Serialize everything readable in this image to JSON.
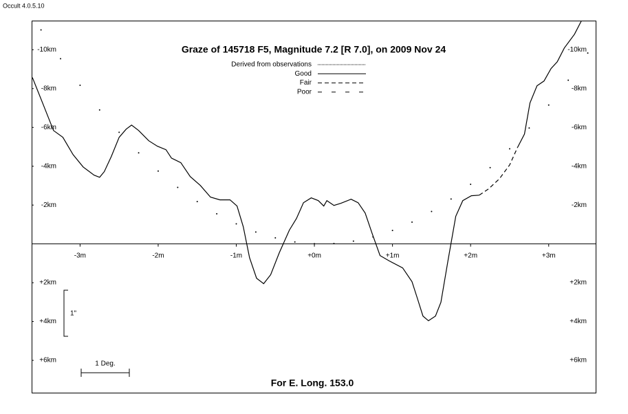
{
  "app_label": "Occult 4.0.5.10",
  "chart_data": {
    "type": "line",
    "title": "Graze of  145718 F5,  Magnitude 7.2 [R 7.0],  on 2009 Nov 24",
    "footer": "For E. Long. 153.0",
    "scale_vertical": "1\"",
    "scale_horizontal": "1 Deg.",
    "legend": [
      {
        "label": "Derived from observations",
        "dash": "1 1"
      },
      {
        "label": "Good",
        "dash": "none"
      },
      {
        "label": "Fair",
        "dash": "6 4"
      },
      {
        "label": "Poor",
        "dash": "6 14"
      }
    ],
    "xlim": [
      -3.62,
      3.61
    ],
    "ylim": [
      7.7,
      -11.5
    ],
    "xticks": [
      {
        "value": -3,
        "label": "-3m"
      },
      {
        "value": -2,
        "label": "-2m"
      },
      {
        "value": -1,
        "label": "-1m"
      },
      {
        "value": 0,
        "label": "+0m"
      },
      {
        "value": 1,
        "label": "+1m"
      },
      {
        "value": 2,
        "label": "+2m"
      },
      {
        "value": 3,
        "label": "+3m"
      }
    ],
    "yticks": [
      {
        "value": -10,
        "label": "-10km"
      },
      {
        "value": -8,
        "label": "-8km"
      },
      {
        "value": -6,
        "label": "-6km"
      },
      {
        "value": -4,
        "label": "-4km"
      },
      {
        "value": -2,
        "label": "-2km"
      },
      {
        "value": 2,
        "label": "+2km"
      },
      {
        "value": 4,
        "label": "+4km"
      },
      {
        "value": 6,
        "label": "+6km"
      }
    ],
    "series": [
      {
        "style": "solid",
        "color": "#000000",
        "x": [
          -3.61,
          -3.48,
          -3.34,
          -3.22,
          -3.09,
          -2.96,
          -2.82,
          -2.75,
          -2.69,
          -2.6,
          -2.5,
          -2.41,
          -2.34,
          -2.25,
          -2.12,
          -2.01,
          -1.9,
          -1.83,
          -1.71,
          -1.59,
          -1.46,
          -1.33,
          -1.21,
          -1.08,
          -0.99,
          -0.91,
          -0.83,
          -0.74,
          -0.65,
          -0.56,
          -0.45,
          -0.32,
          -0.23,
          -0.14,
          -0.04,
          0.05,
          0.12,
          0.16,
          0.25,
          0.34,
          0.47,
          0.56,
          0.65,
          0.74,
          0.84,
          0.96,
          1.13,
          1.25,
          1.32,
          1.39,
          1.46,
          1.55,
          1.62,
          1.71,
          1.81,
          1.9,
          2.01,
          2.11,
          2.3,
          2.6,
          2.69,
          2.76,
          2.85,
          2.94,
          3.03,
          3.11,
          3.2,
          3.33,
          3.42
        ],
        "values": [
          -8.57,
          -7.26,
          -5.84,
          -5.49,
          -4.6,
          -3.96,
          -3.54,
          -3.43,
          -3.72,
          -4.5,
          -5.49,
          -5.91,
          -6.12,
          -5.84,
          -5.31,
          -5.03,
          -4.85,
          -4.42,
          -4.18,
          -3.47,
          -3.01,
          -2.41,
          -2.27,
          -2.27,
          -1.95,
          -0.88,
          0.71,
          1.77,
          2.05,
          1.59,
          0.46,
          -0.71,
          -1.31,
          -2.12,
          -2.37,
          -2.23,
          -1.95,
          -2.23,
          -1.98,
          -2.09,
          -2.3,
          -2.12,
          -1.59,
          -0.53,
          0.6,
          0.88,
          1.24,
          1.95,
          2.83,
          3.72,
          3.96,
          3.72,
          3.01,
          0.88,
          -1.42,
          -2.23,
          -2.48,
          -2.51,
          null,
          -4.96,
          -5.66,
          -7.26,
          -8.14,
          -8.39,
          -9.03,
          -9.38,
          -10.09,
          -10.8,
          -11.5
        ]
      },
      {
        "style": "dashed",
        "color": "#000000",
        "x": [
          2.11,
          2.23,
          2.37,
          2.5,
          2.6
        ],
        "values": [
          -2.51,
          -2.83,
          -3.36,
          -4.07,
          -4.96
        ]
      },
      {
        "style": "dots",
        "color": "#000000",
        "x": [
          -3.5,
          -3.25,
          -3.0,
          -2.75,
          -2.5,
          -2.25,
          -2.0,
          -1.75,
          -1.5,
          -1.25,
          -1.0,
          -0.75,
          -0.5,
          -0.25,
          0,
          0.25,
          0.5,
          0.75,
          1.0,
          1.25,
          1.5,
          1.75,
          2.0,
          2.25,
          2.5,
          2.75,
          3.0,
          3.25,
          3.5
        ],
        "values": [
          -11.02,
          -9.54,
          -8.17,
          -6.9,
          -5.75,
          -4.69,
          -3.75,
          -2.91,
          -2.18,
          -1.55,
          -1.03,
          -0.61,
          -0.31,
          -0.1,
          -0.01,
          -0.02,
          -0.14,
          -0.36,
          -0.69,
          -1.12,
          -1.67,
          -2.31,
          -3.07,
          -3.93,
          -4.9,
          -5.97,
          -7.15,
          -8.43,
          -9.83
        ]
      }
    ]
  }
}
